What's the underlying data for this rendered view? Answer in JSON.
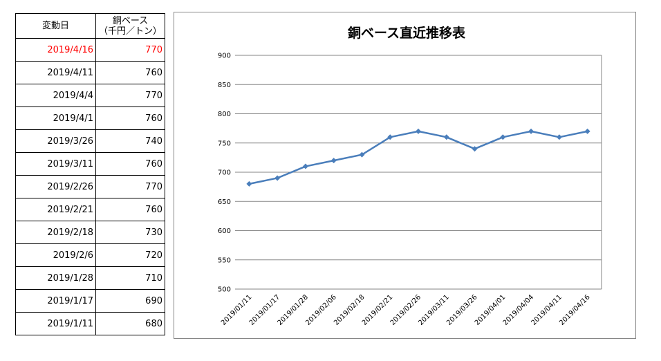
{
  "table": {
    "header_date": "変動日",
    "header_price_line1": "銅ベース",
    "header_price_line2": "（千円／トン）",
    "rows": [
      {
        "date": "2019/4/16",
        "price": "770"
      },
      {
        "date": "2019/4/11",
        "price": "760"
      },
      {
        "date": "2019/4/4",
        "price": "770"
      },
      {
        "date": "2019/4/1",
        "price": "760"
      },
      {
        "date": "2019/3/26",
        "price": "740"
      },
      {
        "date": "2019/3/11",
        "price": "760"
      },
      {
        "date": "2019/2/26",
        "price": "770"
      },
      {
        "date": "2019/2/21",
        "price": "760"
      },
      {
        "date": "2019/2/18",
        "price": "730"
      },
      {
        "date": "2019/2/6",
        "price": "720"
      },
      {
        "date": "2019/1/28",
        "price": "710"
      },
      {
        "date": "2019/1/17",
        "price": "690"
      },
      {
        "date": "2019/1/11",
        "price": "680"
      }
    ],
    "highlight_color": "#ff0000"
  },
  "chart_data": {
    "type": "line",
    "title": "銅ベース直近推移表",
    "xlabel": "",
    "ylabel": "",
    "categories": [
      "2019/01/11",
      "2019/01/17",
      "2019/01/28",
      "2019/02/06",
      "2019/02/18",
      "2019/02/21",
      "2019/02/26",
      "2019/03/11",
      "2019/03/26",
      "2019/04/01",
      "2019/04/04",
      "2019/04/11",
      "2019/04/16"
    ],
    "series": [
      {
        "values": [
          680,
          690,
          710,
          720,
          730,
          760,
          770,
          760,
          740,
          760,
          770,
          760,
          770
        ],
        "color": "#4a7ebb"
      }
    ],
    "ylim": [
      500,
      900
    ],
    "yticks": [
      500,
      550,
      600,
      650,
      700,
      750,
      800,
      850,
      900
    ],
    "grid": true,
    "legend": "none",
    "gridline_color": "#868686"
  }
}
